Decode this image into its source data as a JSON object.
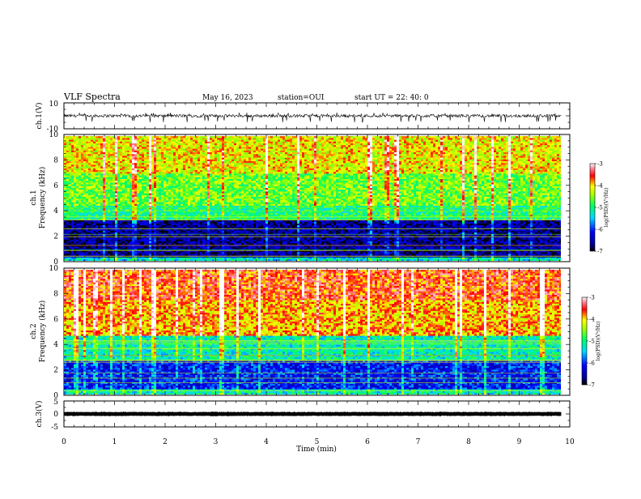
{
  "header": {
    "title": "VLF Spectra",
    "date": "May 16, 2023",
    "station": "station=OUI",
    "start": "start  UT =   22: 40: 0"
  },
  "chart_data": [
    {
      "type": "line",
      "name": "ch1-waveform",
      "ylabel": "ch.1(V)",
      "ylim": [
        -10,
        10
      ],
      "yticks": [
        "10",
        "-10"
      ],
      "xlim": [
        0,
        10
      ],
      "x_extent": [
        0,
        9.83
      ],
      "baseline": 0,
      "amplitude_range": [
        -3.5,
        1.5
      ],
      "color": "#000000"
    },
    {
      "type": "heatmap",
      "name": "ch1-spectrogram",
      "ylabel": "ch.1\nFrequency (kHz)",
      "ylim": [
        0,
        10
      ],
      "yticks": [
        "0",
        "2",
        "4",
        "6",
        "8",
        "10"
      ],
      "xlim": [
        0,
        10
      ],
      "x_extent": [
        0,
        9.83
      ],
      "colorbar": {
        "label": "log(PSD)(V²/Hz)",
        "min": -7,
        "max": -3,
        "ticks": [
          "-3",
          "-4",
          "-5",
          "-6",
          "-7"
        ]
      },
      "bands": [
        {
          "f_low": 0,
          "f_high": 0.4,
          "logpsd": -5.3
        },
        {
          "f_low": 0.4,
          "f_high": 3.3,
          "logpsd": -6.6
        },
        {
          "f_low": 3.3,
          "f_high": 4.5,
          "logpsd": -5.0
        },
        {
          "f_low": 4.5,
          "f_high": 7.0,
          "logpsd": -4.6
        },
        {
          "f_low": 7.0,
          "f_high": 10,
          "logpsd": -4.1
        }
      ]
    },
    {
      "type": "heatmap",
      "name": "ch2-spectrogram",
      "ylabel": "ch.2\nFrequency (kHz)",
      "ylim": [
        0,
        10
      ],
      "yticks": [
        "0",
        "2",
        "4",
        "6",
        "8",
        "10"
      ],
      "xlim": [
        0,
        10
      ],
      "x_extent": [
        0,
        9.83
      ],
      "colorbar": {
        "label": "log(PSD)(V²/Hz)",
        "min": -7,
        "max": -3,
        "ticks": [
          "-3",
          "-4",
          "-5",
          "-6",
          "-7"
        ]
      },
      "bands": [
        {
          "f_low": 0,
          "f_high": 0.5,
          "logpsd": -5.2
        },
        {
          "f_low": 0.5,
          "f_high": 2.8,
          "logpsd": -6.1
        },
        {
          "f_low": 2.8,
          "f_high": 4.8,
          "logpsd": -5.2
        },
        {
          "f_low": 4.8,
          "f_high": 7.5,
          "logpsd": -3.9
        },
        {
          "f_low": 7.5,
          "f_high": 10,
          "logpsd": -3.6
        }
      ]
    },
    {
      "type": "line",
      "name": "ch3-waveform",
      "ylabel": "ch.3(V)",
      "ylim": [
        -5,
        5
      ],
      "yticks": [
        "5",
        "0",
        "-5"
      ],
      "xlim": [
        0,
        10
      ],
      "x_extent": [
        0,
        9.83
      ],
      "baseline": 0,
      "amplitude_range": [
        -0.2,
        0.2
      ],
      "color": "#000000"
    }
  ],
  "xaxis": {
    "label": "Time (min)",
    "ticks": [
      "0",
      "1",
      "2",
      "3",
      "4",
      "5",
      "6",
      "7",
      "8",
      "9",
      "10"
    ]
  }
}
